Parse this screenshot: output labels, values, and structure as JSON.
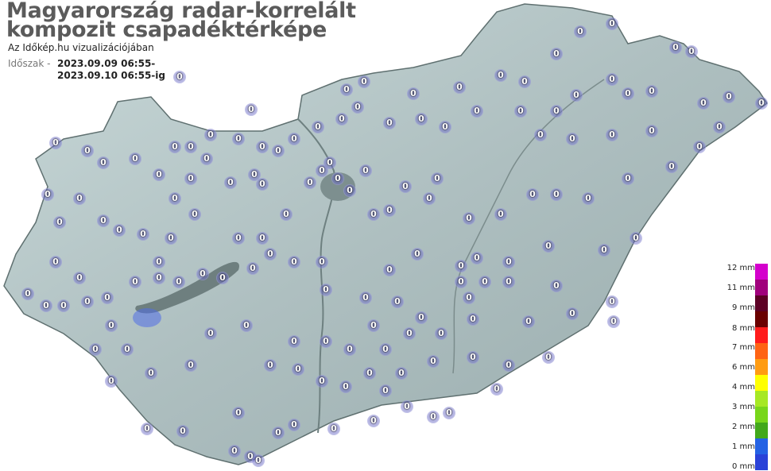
{
  "header": {
    "title_line1": "Magyarország radar-korrelált",
    "title_line2": "kompozit csapadéktérképe",
    "subtitle": "Az Időkép.hu vizualizációjában",
    "period_label": "Időszak -",
    "period_start": "2023.09.09 06:55-",
    "period_end": "2023.09.10 06:55-ig"
  },
  "legend": {
    "labels": [
      "12 mm",
      "11 mm",
      "9 mm",
      "8 mm",
      "7 mm",
      "6 mm",
      "4 mm",
      "3 mm",
      "2 mm",
      "1 mm",
      "0 mm"
    ],
    "colors": [
      "#d400cc",
      "#a0007c",
      "#5c0024",
      "#6a0000",
      "#ff1c1c",
      "#ff6414",
      "#ff9c12",
      "#ffff00",
      "#a6e824",
      "#78d61a",
      "#42a81a",
      "#2462e4",
      "#2a42d8"
    ]
  },
  "map": {
    "land_color": "#b9cccc",
    "water_color": "#6e7f7f",
    "station_value": "0"
  }
}
